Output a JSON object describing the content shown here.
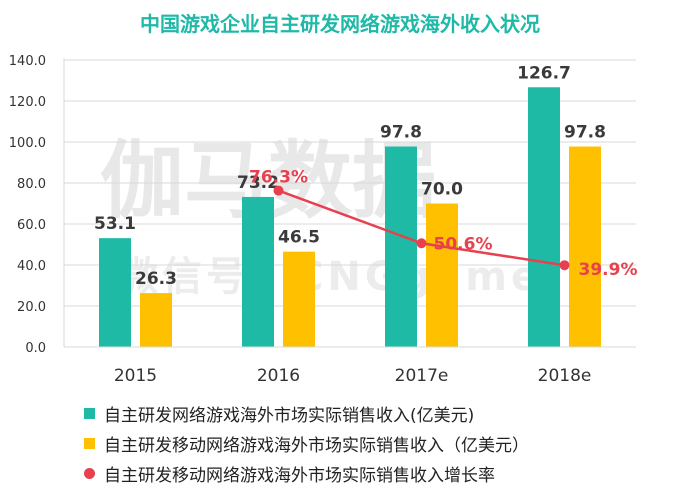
{
  "chart_data": {
    "type": "bar",
    "title": "中国游戏企业自主研发网络游戏海外收入状况",
    "categories": [
      "2015",
      "2016",
      "2017e",
      "2018e"
    ],
    "series": [
      {
        "name": "自主研发网络游戏海外市场实际销售收入(亿美元)",
        "type": "bar",
        "color": "#1fbaa6",
        "values": [
          53.1,
          73.2,
          97.8,
          126.7
        ],
        "labels": [
          "53.1",
          "73.2",
          "97.8",
          "126.7"
        ]
      },
      {
        "name": "自主研发移动网络游戏海外市场实际销售收入（亿美元）",
        "type": "bar",
        "color": "#ffc000",
        "values": [
          26.3,
          46.5,
          70.0,
          97.8
        ],
        "labels": [
          "26.3",
          "46.5",
          "70.0",
          "97.8"
        ]
      },
      {
        "name": "自主研发移动网络游戏海外市场实际销售收入增长率",
        "type": "line",
        "color": "#e8404f",
        "x": [
          "2016",
          "2017e",
          "2018e"
        ],
        "values": [
          76.3,
          50.6,
          39.9
        ],
        "labels": [
          "76.3%",
          "50.6%",
          "39.9%"
        ]
      }
    ],
    "ylim": [
      0,
      140
    ],
    "yticks": [
      "0.0",
      "20.0",
      "40.0",
      "60.0",
      "80.0",
      "100.0",
      "120.0",
      "140.0"
    ],
    "grid": true,
    "legend": "bottom"
  },
  "watermark": {
    "main": "伽马数据",
    "sub": "微信号：CNGgame"
  }
}
